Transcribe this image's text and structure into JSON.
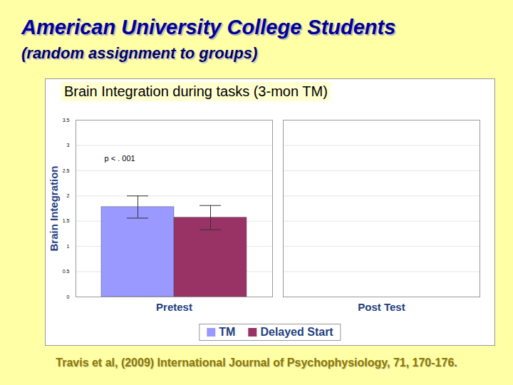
{
  "header": {
    "title": "American University College Students",
    "subtitle": "(random assignment to groups)"
  },
  "footer": {
    "caption": "Travis et al, (2009) International Journal of Psychophysiology, 71, 170-176."
  },
  "chart_data": {
    "type": "bar",
    "title": "Brain Integration during tasks (3-mon TM)",
    "ylabel": "Brain Integration",
    "categories": [
      "Pretest",
      "Post Test"
    ],
    "series": [
      {
        "name": "TM",
        "color": "#9999FF",
        "values": [
          1.78,
          0
        ],
        "errors": [
          0.22,
          null
        ]
      },
      {
        "name": "Delayed Start",
        "color": "#993366",
        "values": [
          1.57,
          0
        ],
        "errors": [
          0.24,
          null
        ]
      }
    ],
    "ylim": [
      0,
      3.5
    ],
    "yticks": [
      0,
      0.5,
      1,
      1.5,
      2,
      2.5,
      3,
      3.5
    ],
    "grid": true,
    "legend": "bottom",
    "annotations": [
      "p < . 001"
    ]
  }
}
